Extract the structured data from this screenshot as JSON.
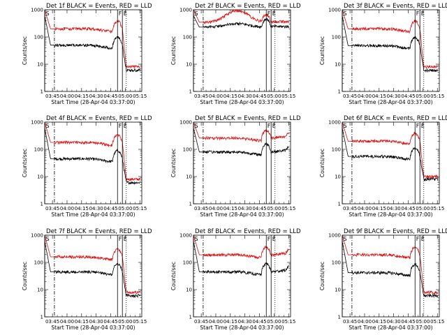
{
  "chart_data": {
    "type": "line",
    "layout": "3x3 grid of small multiples",
    "y_scale": "log",
    "ylim": [
      1,
      1000
    ],
    "y_ticks": [
      1,
      10,
      100,
      1000
    ],
    "y_tick_labels": [
      "1",
      "10",
      "100",
      "1000"
    ],
    "x_range_minutes": [
      0,
      100
    ],
    "x_ticks": [
      8,
      23,
      38,
      53,
      68,
      83,
      98
    ],
    "x_tick_labels": [
      "03:45",
      "04:00",
      "04:15",
      "04:30",
      "04:45",
      "05:00",
      "05:15"
    ],
    "xlabel": "Start Time (28-Apr-04 03:37:00)",
    "ylabel": "Counts/sec",
    "colors": {
      "events": "#000000",
      "lld": "#dd1111"
    },
    "markers": [
      {
        "label": "S",
        "x": 0,
        "style": "solid"
      },
      {
        "label": "",
        "x": 10,
        "style": "dash-dot"
      },
      {
        "label": "F",
        "x": 75,
        "style": "solid"
      },
      {
        "label": "E",
        "x": 80,
        "style": "solid"
      },
      {
        "label": "",
        "x": 84,
        "style": "dotted"
      }
    ],
    "panels": [
      {
        "title": "Det 1f BLACK = Events, RED = LLD",
        "lld_base": 200,
        "events_base": 50,
        "lld_end": 8,
        "events_end": 6,
        "profile": "normal"
      },
      {
        "title": "Det 2f BLACK = Events, RED = LLD",
        "lld_base": 350,
        "events_base": 230,
        "lld_end": 300,
        "events_end": 210,
        "profile": "bump"
      },
      {
        "title": "Det 3f BLACK = Events, RED = LLD",
        "lld_base": 200,
        "events_base": 48,
        "lld_end": 8,
        "events_end": 6,
        "profile": "normal"
      },
      {
        "title": "Det 4f BLACK = Events, RED = LLD",
        "lld_base": 180,
        "events_base": 45,
        "lld_end": 8,
        "events_end": 6,
        "profile": "normal"
      },
      {
        "title": "Det 5f BLACK = Events, RED = LLD",
        "lld_base": 260,
        "events_base": 80,
        "lld_end": 300,
        "events_end": 70,
        "profile": "late"
      },
      {
        "title": "Det 6f BLACK = Events, RED = LLD",
        "lld_base": 200,
        "events_base": 55,
        "lld_end": 10,
        "events_end": 8,
        "profile": "normal"
      },
      {
        "title": "Det 7f BLACK = Events, RED = LLD",
        "lld_base": 160,
        "events_base": 45,
        "lld_end": 8,
        "events_end": 6,
        "profile": "normal"
      },
      {
        "title": "Det 8f BLACK = Events, RED = LLD",
        "lld_base": 190,
        "events_base": 45,
        "lld_end": 240,
        "events_end": 45,
        "profile": "late"
      },
      {
        "title": "Det 9f BLACK = Events, RED = LLD",
        "lld_base": 190,
        "events_base": 42,
        "lld_end": 8,
        "events_end": 6,
        "profile": "normal"
      }
    ]
  }
}
